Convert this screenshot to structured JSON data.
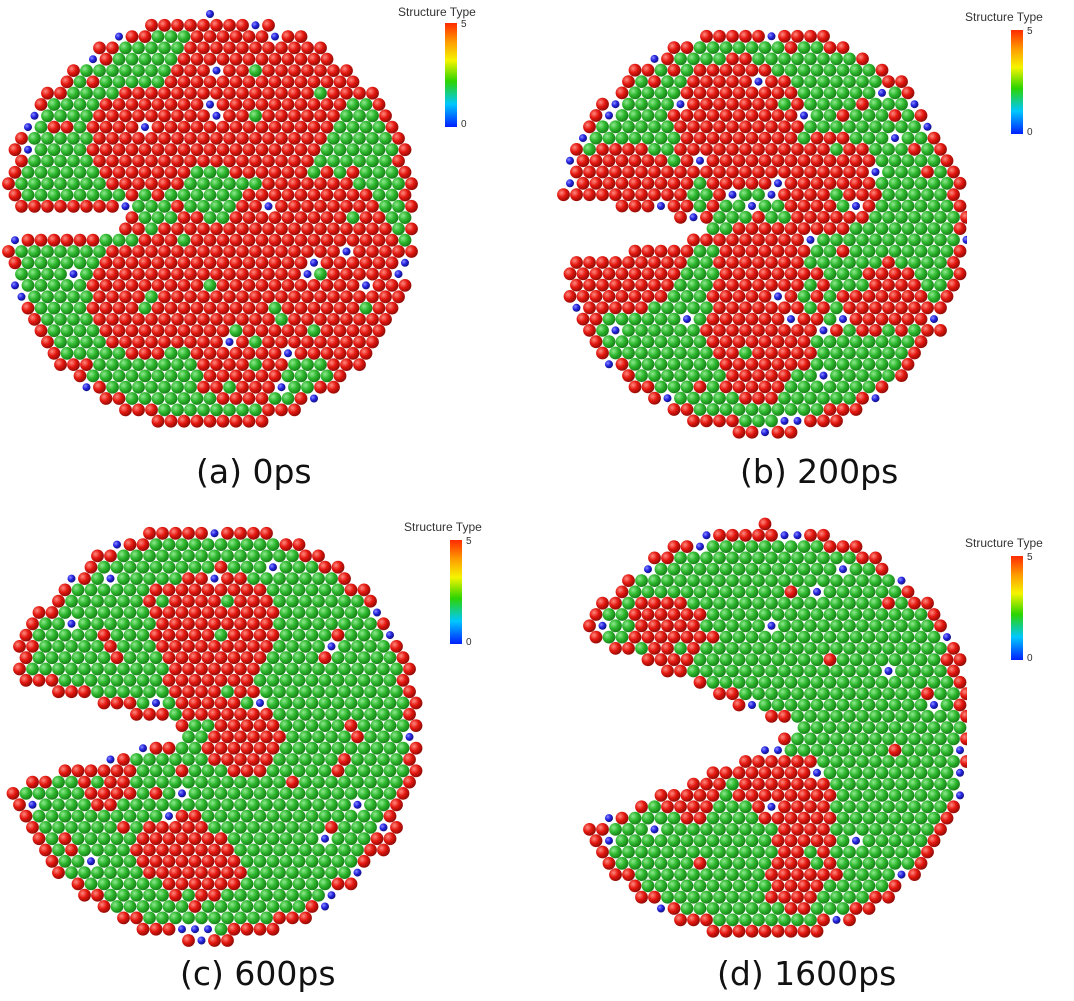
{
  "figure": {
    "panels": [
      {
        "caption": "(a) 0ps",
        "legend": {
          "title": "Structure Type",
          "max_label": "5",
          "min_label": "0"
        },
        "notch": {
          "depth_fraction": 0.31,
          "mouth_half_angle_deg": 5,
          "tip": "flat"
        },
        "red_fraction": 0.58
      },
      {
        "caption": "(b) 200ps",
        "legend": {
          "title": "Structure Type",
          "max_label": "5",
          "min_label": "0"
        },
        "notch": {
          "depth_fraction": 0.35,
          "mouth_half_angle_deg": 12,
          "tip": "rounded"
        },
        "red_fraction": 0.42
      },
      {
        "caption": "(c) 600ps",
        "legend": {
          "title": "Structure Type",
          "max_label": "5",
          "min_label": "0"
        },
        "notch": {
          "depth_fraction": 0.42,
          "mouth_half_angle_deg": 16,
          "tip": "rounded"
        },
        "red_fraction": 0.22
      },
      {
        "caption": "(d) 1600ps",
        "legend": {
          "title": "Structure Type",
          "max_label": "5",
          "min_label": "0"
        },
        "notch": {
          "depth_fraction": 0.55,
          "mouth_half_angle_deg": 24,
          "tip": "rounded"
        },
        "red_fraction": 0.18
      }
    ],
    "colors": {
      "fcc_green": "#2eb82e",
      "hcp_red": "#e4170f",
      "other_blue": "#2424e0",
      "background": "#ffffff"
    }
  }
}
